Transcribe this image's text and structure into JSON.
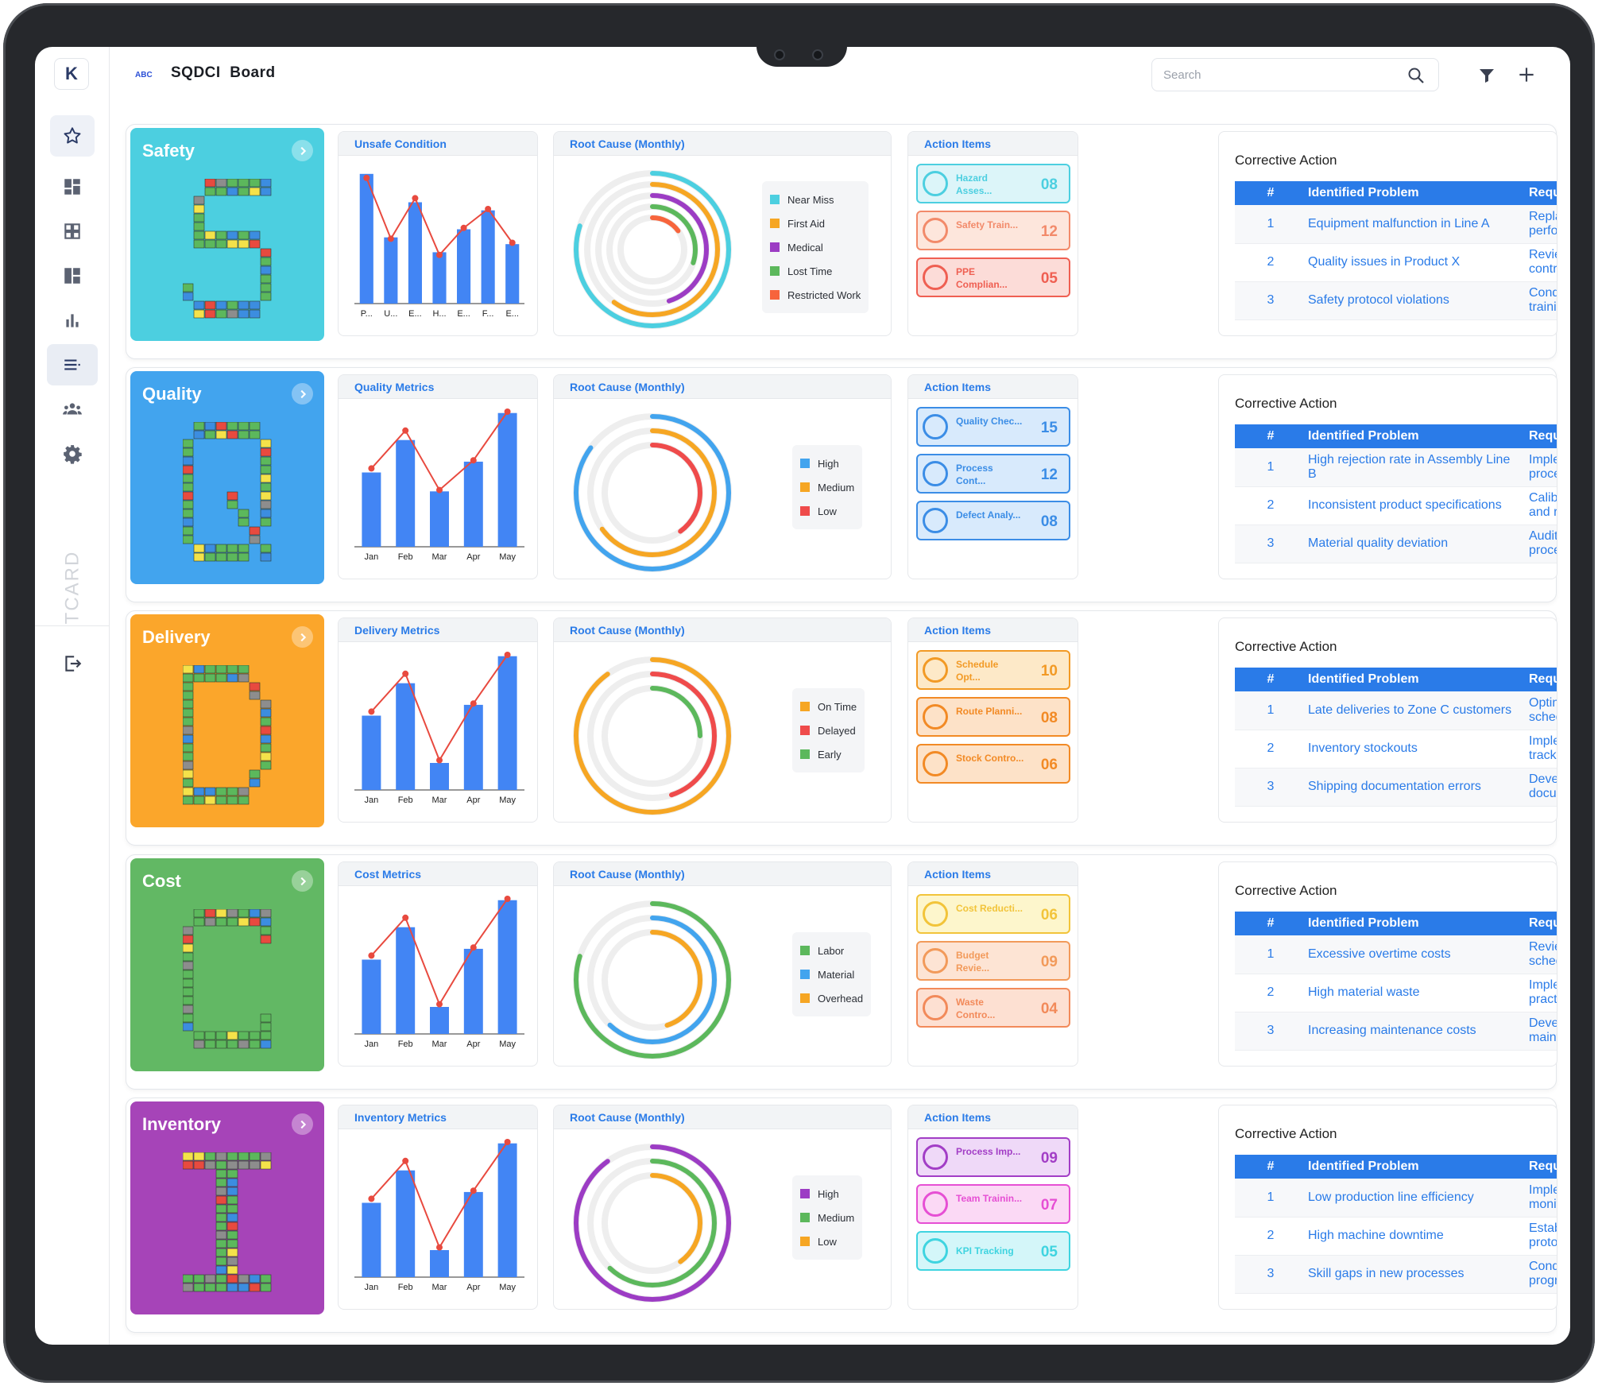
{
  "app": {
    "logo": "K",
    "abc": "ABC",
    "title": "SQDCI  Board",
    "search_placeholder": "Search",
    "vertical_label": "TCARD"
  },
  "sidebar": [
    {
      "name": "favorites",
      "icon": "star-icon"
    },
    {
      "name": "dashboard",
      "icon": "dashboard-icon"
    },
    {
      "name": "grid",
      "icon": "grid-icon"
    },
    {
      "name": "layout",
      "icon": "layout-icon"
    },
    {
      "name": "reports",
      "icon": "bar-chart-icon"
    },
    {
      "name": "list",
      "icon": "list-icon"
    },
    {
      "name": "team",
      "icon": "team-icon"
    },
    {
      "name": "settings",
      "icon": "gear-icon"
    }
  ],
  "rows": [
    {
      "key": "safety",
      "title": "Safety",
      "color": "#4ccfe0",
      "metrics_title": "Unsafe Condition",
      "root_title": "Root Cause (Monthly)",
      "actions_title": "Action Items",
      "chart_data": {
        "type": "bar",
        "categories": [
          "P...",
          "U...",
          "E...",
          "H...",
          "E...",
          "F...",
          "E..."
        ],
        "values": [
          96,
          49,
          75,
          38,
          55,
          69,
          44
        ],
        "line": [
          93,
          48,
          78,
          36,
          56,
          70,
          45
        ],
        "ylim": [
          0,
          100
        ]
      },
      "donut": [
        {
          "name": "Near Miss",
          "color": "#4ccfe0",
          "value": 80
        },
        {
          "name": "First Aid",
          "color": "#f6a623",
          "value": 60
        },
        {
          "name": "Medical",
          "color": "#9c3cc4",
          "value": 45
        },
        {
          "name": "Lost Time",
          "color": "#5cb85c",
          "value": 30
        },
        {
          "name": "Restricted Work",
          "color": "#f7643c",
          "value": 15
        }
      ],
      "actions": [
        {
          "label": "Hazard Asses...",
          "count": "08",
          "color": "#4ccfe0",
          "bg": "#dcf5f9"
        },
        {
          "label": "Safety Train...",
          "count": "12",
          "color": "#f28a6a",
          "bg": "#fde6dc"
        },
        {
          "label": "PPE Complian...",
          "count": "05",
          "color": "#ef5f52",
          "bg": "#fcdcd8"
        }
      ],
      "ca": [
        {
          "n": "1",
          "p": "Equipment malfunction in Line A",
          "s": "Replace faulty components and perform maintenance check"
        },
        {
          "n": "2",
          "p": "Quality issues in Product X",
          "s": "Review and update quality control procedures"
        },
        {
          "n": "3",
          "p": "Safety protocol violations",
          "s": "Conduct emergency safety training sessions"
        }
      ]
    },
    {
      "key": "quality",
      "title": "Quality",
      "color": "#42a4ee",
      "metrics_title": "Quality Metrics",
      "root_title": "Root Cause (Monthly)",
      "actions_title": "Action Items",
      "chart_data": {
        "type": "bar",
        "categories": [
          "Jan",
          "Feb",
          "Mar",
          "Apr",
          "May"
        ],
        "values": [
          55,
          79,
          41,
          63,
          99
        ],
        "line": [
          58,
          86,
          42,
          64,
          100
        ],
        "ylim": [
          0,
          100
        ]
      },
      "donut": [
        {
          "name": "High",
          "color": "#42a4ee",
          "value": 85
        },
        {
          "name": "Medium",
          "color": "#f6a623",
          "value": 65
        },
        {
          "name": "Low",
          "color": "#ef4b4b",
          "value": 40
        }
      ],
      "actions": [
        {
          "label": "Quality Chec...",
          "count": "15",
          "color": "#3b8de6",
          "bg": "#d8eafc"
        },
        {
          "label": "Process Cont...",
          "count": "12",
          "color": "#3b8de6",
          "bg": "#d8eafc"
        },
        {
          "label": "Defect Analy...",
          "count": "08",
          "color": "#3b8de6",
          "bg": "#d8eafc"
        }
      ],
      "ca": [
        {
          "n": "1",
          "p": "High rejection rate in Assembly Line B",
          "s": "Implement enhanced inspection process"
        },
        {
          "n": "2",
          "p": "Inconsistent product specifications",
          "s": "Calibrate measurement tools and retrain operators"
        },
        {
          "n": "3",
          "p": "Material quality deviation",
          "s": "Audit supplier quality control processes"
        }
      ]
    },
    {
      "key": "delivery",
      "title": "Delivery",
      "color": "#fba62b",
      "metrics_title": "Delivery Metrics",
      "root_title": "Root Cause (Monthly)",
      "actions_title": "Action Items",
      "chart_data": {
        "type": "bar",
        "categories": [
          "Jan",
          "Feb",
          "Mar",
          "Apr",
          "May"
        ],
        "values": [
          55,
          79,
          20,
          63,
          99
        ],
        "line": [
          58,
          86,
          22,
          64,
          100
        ],
        "ylim": [
          0,
          100
        ]
      },
      "donut": [
        {
          "name": "On Time",
          "color": "#f6a623",
          "value": 90
        },
        {
          "name": "Delayed",
          "color": "#ef4b4b",
          "value": 45
        },
        {
          "name": "Early",
          "color": "#5cb85c",
          "value": 25
        }
      ],
      "actions": [
        {
          "label": "Schedule Opt...",
          "count": "10",
          "color": "#f29a25",
          "bg": "#fde9c8"
        },
        {
          "label": "Route Planni...",
          "count": "08",
          "color": "#f28a25",
          "bg": "#fde2c8"
        },
        {
          "label": "Stock Contro...",
          "count": "06",
          "color": "#f28a25",
          "bg": "#fde2c8"
        }
      ],
      "ca": [
        {
          "n": "1",
          "p": "Late deliveries to Zone C customers",
          "s": "Optimize delivery route schedules"
        },
        {
          "n": "2",
          "p": "Inventory stockouts",
          "s": "Implement real-time inventory tracking system"
        },
        {
          "n": "3",
          "p": "Shipping documentation errors",
          "s": "Develop automated documentation process"
        }
      ]
    },
    {
      "key": "cost",
      "title": "Cost",
      "color": "#62b864",
      "metrics_title": "Cost Metrics",
      "root_title": "Root Cause (Monthly)",
      "actions_title": "Action Items",
      "chart_data": {
        "type": "bar",
        "categories": [
          "Jan",
          "Feb",
          "Mar",
          "Apr",
          "May"
        ],
        "values": [
          55,
          79,
          20,
          63,
          99
        ],
        "line": [
          58,
          86,
          22,
          64,
          100
        ],
        "ylim": [
          0,
          100
        ]
      },
      "donut": [
        {
          "name": "Labor",
          "color": "#5cb85c",
          "value": 80
        },
        {
          "name": "Material",
          "color": "#42a4ee",
          "value": 62
        },
        {
          "name": "Overhead",
          "color": "#f6a623",
          "value": 45
        }
      ],
      "actions": [
        {
          "label": "Cost Reducti...",
          "count": "06",
          "color": "#f2c43a",
          "bg": "#fdf6cc"
        },
        {
          "label": "Budget Revie...",
          "count": "09",
          "color": "#f29a5a",
          "bg": "#fde4d4"
        },
        {
          "label": "Waste Contro...",
          "count": "04",
          "color": "#f28a5a",
          "bg": "#fde0d2"
        }
      ],
      "ca": [
        {
          "n": "1",
          "p": "Excessive overtime costs",
          "s": "Review and optimize shift scheduling"
        },
        {
          "n": "2",
          "p": "High material waste",
          "s": "Implement lean manufacturing practices"
        },
        {
          "n": "3",
          "p": "Increasing maintenance costs",
          "s": "Develop preventive maintenance schedule"
        }
      ]
    },
    {
      "key": "inventory",
      "title": "Inventory",
      "color": "#a644b8",
      "metrics_title": "Inventory Metrics",
      "root_title": "Root Cause (Monthly)",
      "actions_title": "Action Items",
      "chart_data": {
        "type": "bar",
        "categories": [
          "Jan",
          "Feb",
          "Mar",
          "Apr",
          "May"
        ],
        "values": [
          55,
          79,
          20,
          63,
          99
        ],
        "line": [
          58,
          86,
          22,
          64,
          100
        ],
        "ylim": [
          0,
          100
        ]
      },
      "donut": [
        {
          "name": "High",
          "color": "#9c3cc4",
          "value": 90
        },
        {
          "name": "Medium",
          "color": "#5cb85c",
          "value": 62
        },
        {
          "name": "Low",
          "color": "#f6a623",
          "value": 40
        }
      ],
      "actions": [
        {
          "label": "Process Imp...",
          "count": "09",
          "color": "#a23ec6",
          "bg": "#efd9f8"
        },
        {
          "label": "Team Trainin...",
          "count": "07",
          "color": "#e64fd4",
          "bg": "#fbd9f5"
        },
        {
          "label": "KPI Tracking",
          "count": "05",
          "color": "#3fd4e0",
          "bg": "#d4f6f9"
        }
      ],
      "ca": [
        {
          "n": "1",
          "p": "Low production line efficiency",
          "s": "Implement automated monitoring system"
        },
        {
          "n": "2",
          "p": "High machine downtime",
          "s": "Establish regular maintenance protocol"
        },
        {
          "n": "3",
          "p": "Skill gaps in new processes",
          "s": "Conduct comprehensive training program"
        }
      ]
    }
  ],
  "ca_title": "Corrective Action",
  "ca_headers": [
    "#",
    "Identified Problem",
    "Required Corrective Action"
  ]
}
